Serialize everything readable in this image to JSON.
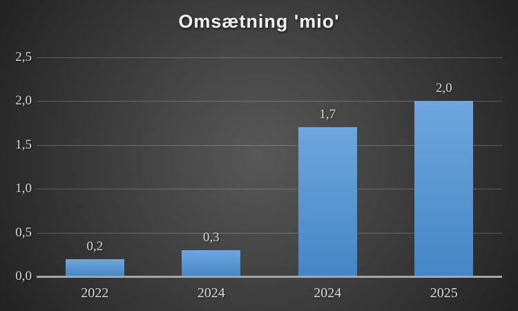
{
  "title": "Omsætning 'mio'",
  "colors": {
    "bg-center": "#585858",
    "bg-edge": "#232323",
    "title-text": "#f1f1f1",
    "text": "#d9d9d9",
    "gridline": "rgba(255,255,255,0.22)",
    "axis-line": "#a6a6a6",
    "bar-top": "#6ea6de",
    "bar-bottom": "#4486c6"
  },
  "chart_data": {
    "type": "bar",
    "title": "Omsætning 'mio'",
    "categories": [
      "2022",
      "2024",
      "2024",
      "2025"
    ],
    "values": [
      0.2,
      0.3,
      1.7,
      2.0
    ],
    "data_labels": [
      "0,2",
      "0,3",
      "1,7",
      "2,0"
    ],
    "xlabel": "",
    "ylabel": "",
    "ylim": [
      0,
      2.5
    ],
    "yticks": {
      "values": [
        0,
        0.5,
        1.0,
        1.5,
        2.0,
        2.5
      ],
      "labels": [
        "0,0",
        "0,5",
        "1,0",
        "1,5",
        "2,0",
        "2,5"
      ]
    },
    "grid": true,
    "legend": false,
    "decimal_separator": ","
  }
}
